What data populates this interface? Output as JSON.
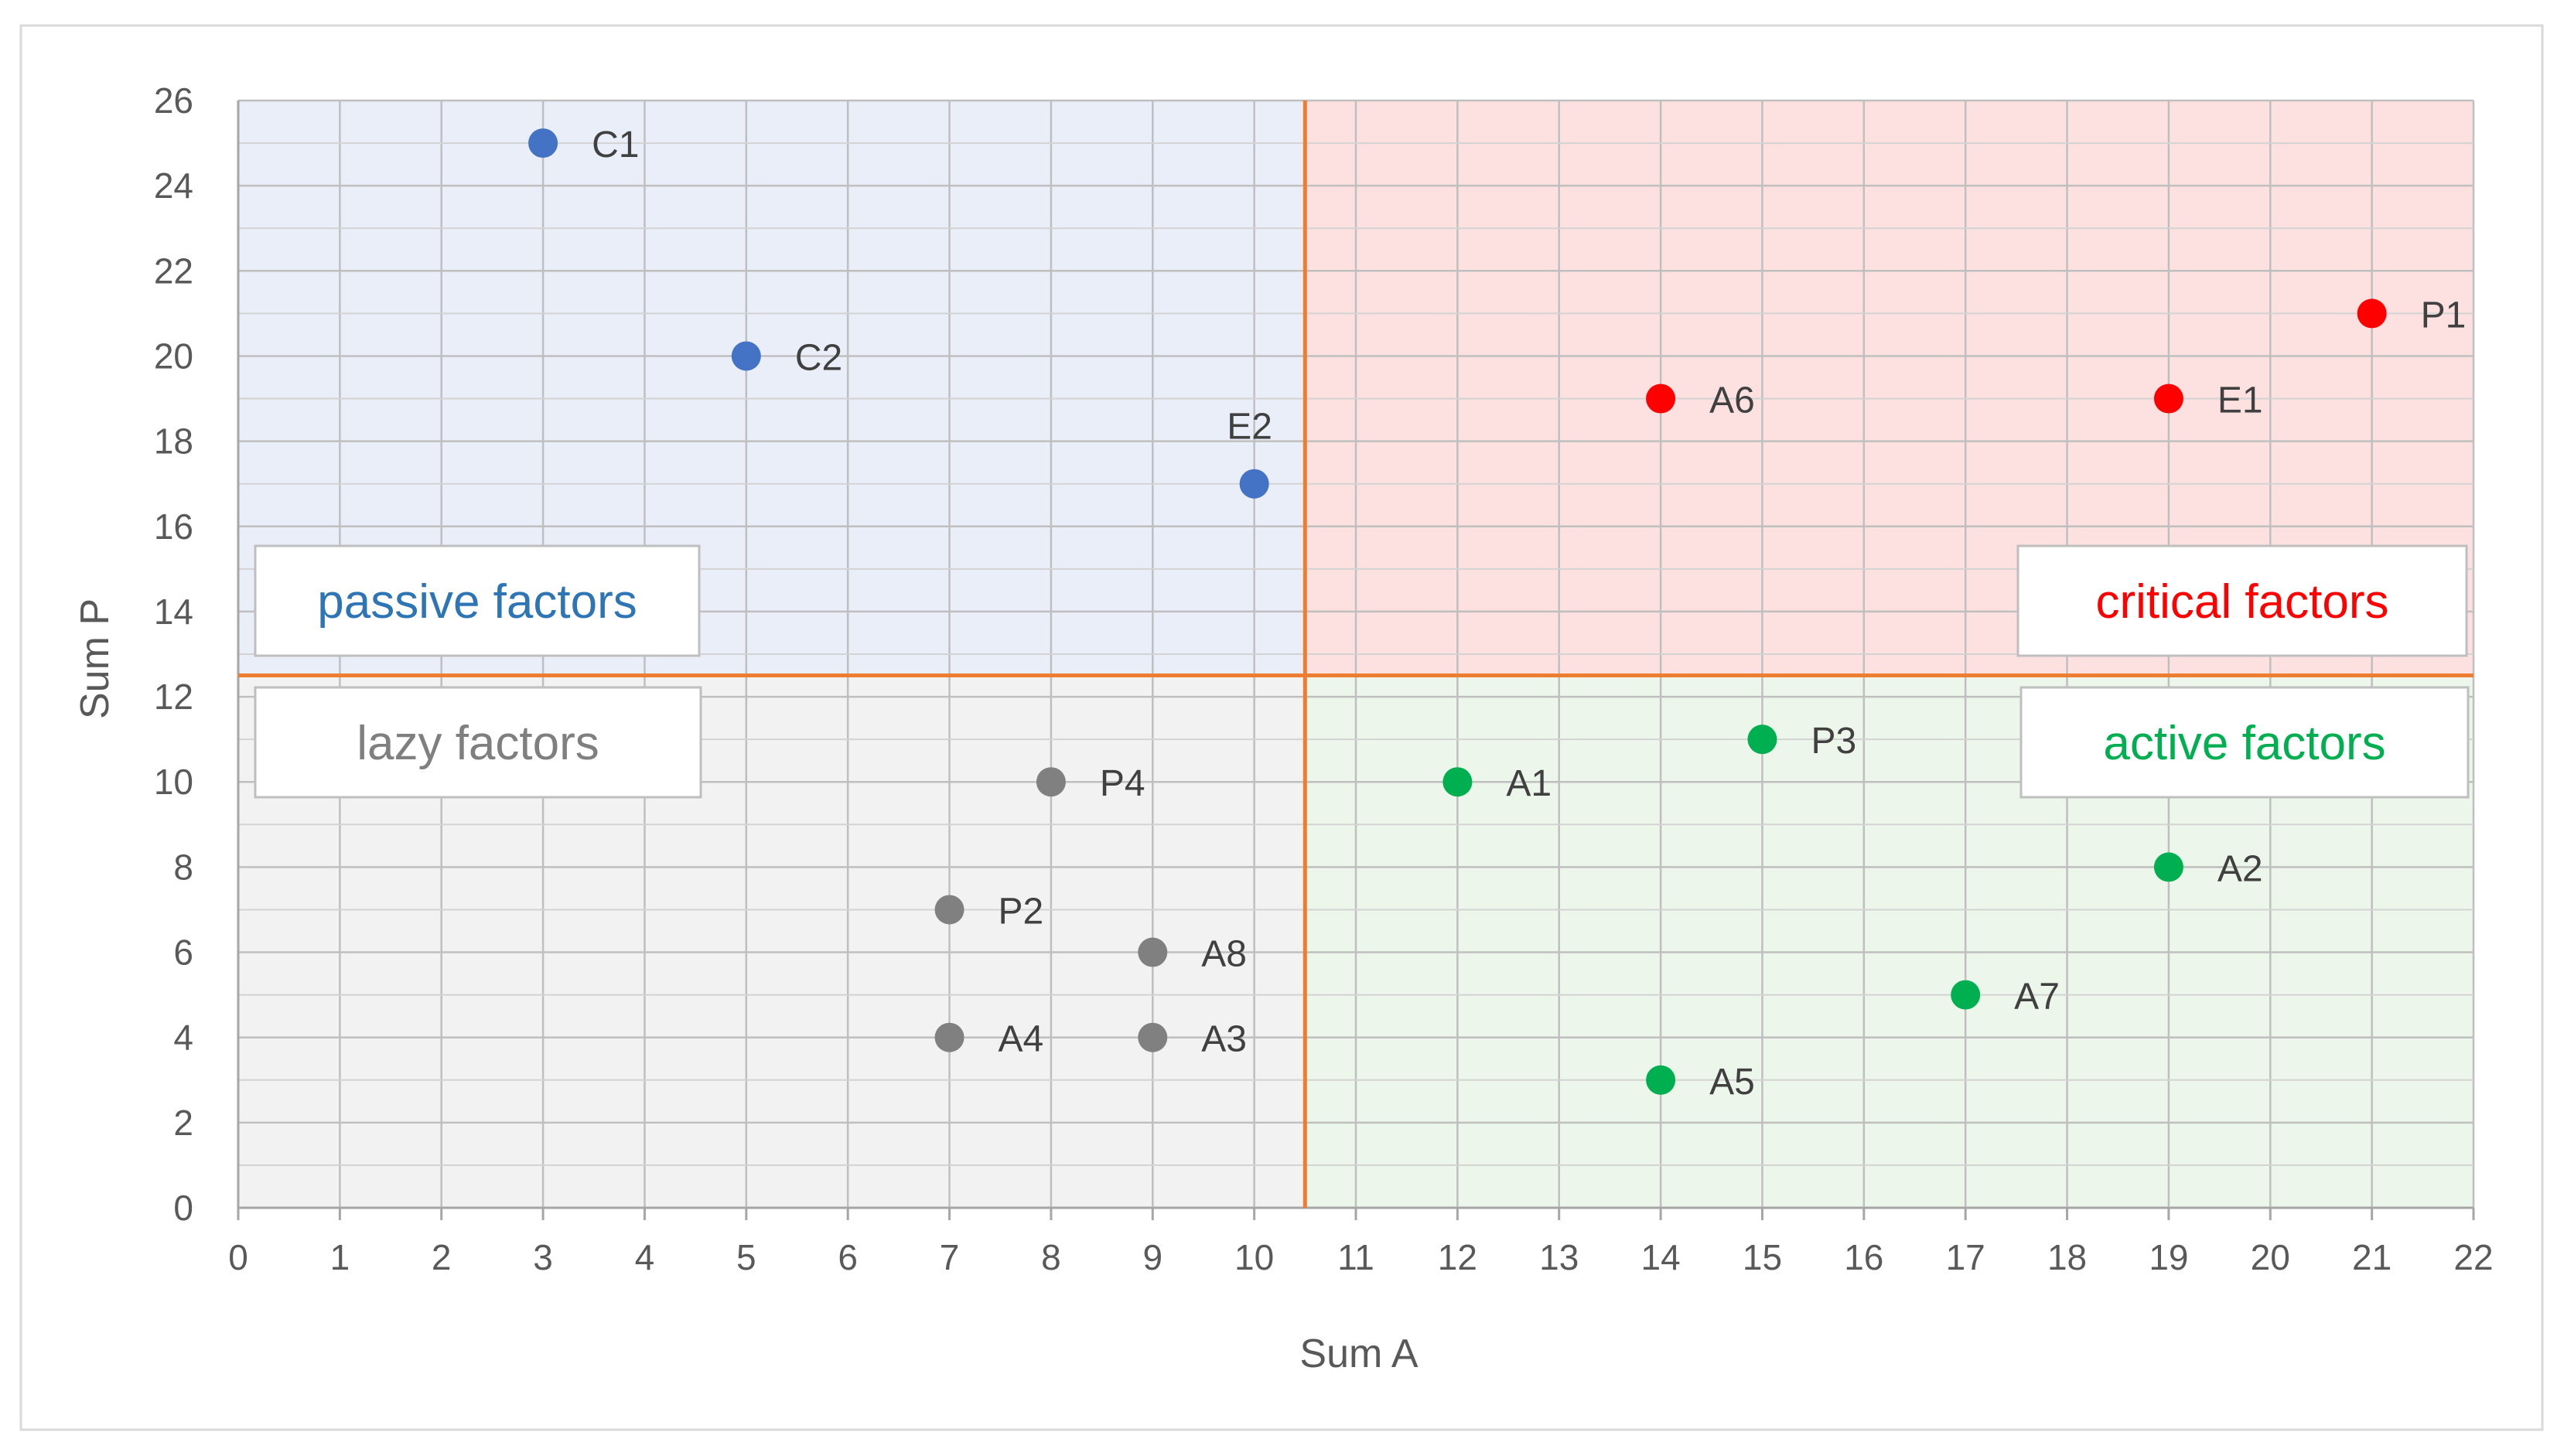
{
  "chart_data": {
    "type": "scatter",
    "xlabel": "Sum A",
    "ylabel": "Sum P",
    "xlim": [
      0,
      22
    ],
    "ylim": [
      0,
      26
    ],
    "x_ticks": [
      0,
      1,
      2,
      3,
      4,
      5,
      6,
      7,
      8,
      9,
      10,
      11,
      12,
      13,
      14,
      15,
      16,
      17,
      18,
      19,
      20,
      21,
      22
    ],
    "y_ticks": [
      0,
      2,
      4,
      6,
      8,
      10,
      12,
      14,
      16,
      18,
      20,
      22,
      24,
      26
    ],
    "minor_grid_step": {
      "x": 1,
      "y": 1
    },
    "grid": true,
    "divider": {
      "x": 10.5,
      "y": 12.5,
      "color": "#ED7D31"
    },
    "quadrants": [
      {
        "id": "passive",
        "label": "passive factors",
        "x_range": [
          0,
          10.5
        ],
        "y_range": [
          12.5,
          26
        ],
        "fill": "#E9EEF8",
        "text_color": "#2E75B6"
      },
      {
        "id": "critical",
        "label": "critical factors",
        "x_range": [
          10.5,
          22
        ],
        "y_range": [
          12.5,
          26
        ],
        "fill": "#FDE1E1",
        "text_color": "#FF0000"
      },
      {
        "id": "lazy",
        "label": "lazy factors",
        "x_range": [
          0,
          10.5
        ],
        "y_range": [
          0,
          12.5
        ],
        "fill": "#F2F2F2",
        "text_color": "#7F7F7F"
      },
      {
        "id": "active",
        "label": "active factors",
        "x_range": [
          10.5,
          22
        ],
        "y_range": [
          0,
          12.5
        ],
        "fill": "#EDF6EA",
        "text_color": "#00B050"
      }
    ],
    "series": [
      {
        "name": "passive",
        "color": "#4472C4",
        "points": [
          {
            "label": "C1",
            "x": 3,
            "y": 25
          },
          {
            "label": "C2",
            "x": 5,
            "y": 20
          },
          {
            "label": "E2",
            "x": 10,
            "y": 17,
            "label_pos": "above"
          }
        ]
      },
      {
        "name": "critical",
        "color": "#FF0000",
        "points": [
          {
            "label": "P1",
            "x": 21,
            "y": 21
          },
          {
            "label": "A6",
            "x": 14,
            "y": 19
          },
          {
            "label": "E1",
            "x": 19,
            "y": 19
          }
        ]
      },
      {
        "name": "lazy",
        "color": "#808080",
        "points": [
          {
            "label": "P4",
            "x": 8,
            "y": 10
          },
          {
            "label": "P2",
            "x": 7,
            "y": 7
          },
          {
            "label": "A8",
            "x": 9,
            "y": 6
          },
          {
            "label": "A4",
            "x": 7,
            "y": 4
          },
          {
            "label": "A3",
            "x": 9,
            "y": 4
          }
        ]
      },
      {
        "name": "active",
        "color": "#00B050",
        "points": [
          {
            "label": "P3",
            "x": 15,
            "y": 11
          },
          {
            "label": "A1",
            "x": 12,
            "y": 10
          },
          {
            "label": "A2",
            "x": 19,
            "y": 8
          },
          {
            "label": "A7",
            "x": 17,
            "y": 5
          },
          {
            "label": "A5",
            "x": 14,
            "y": 3
          }
        ]
      }
    ]
  }
}
